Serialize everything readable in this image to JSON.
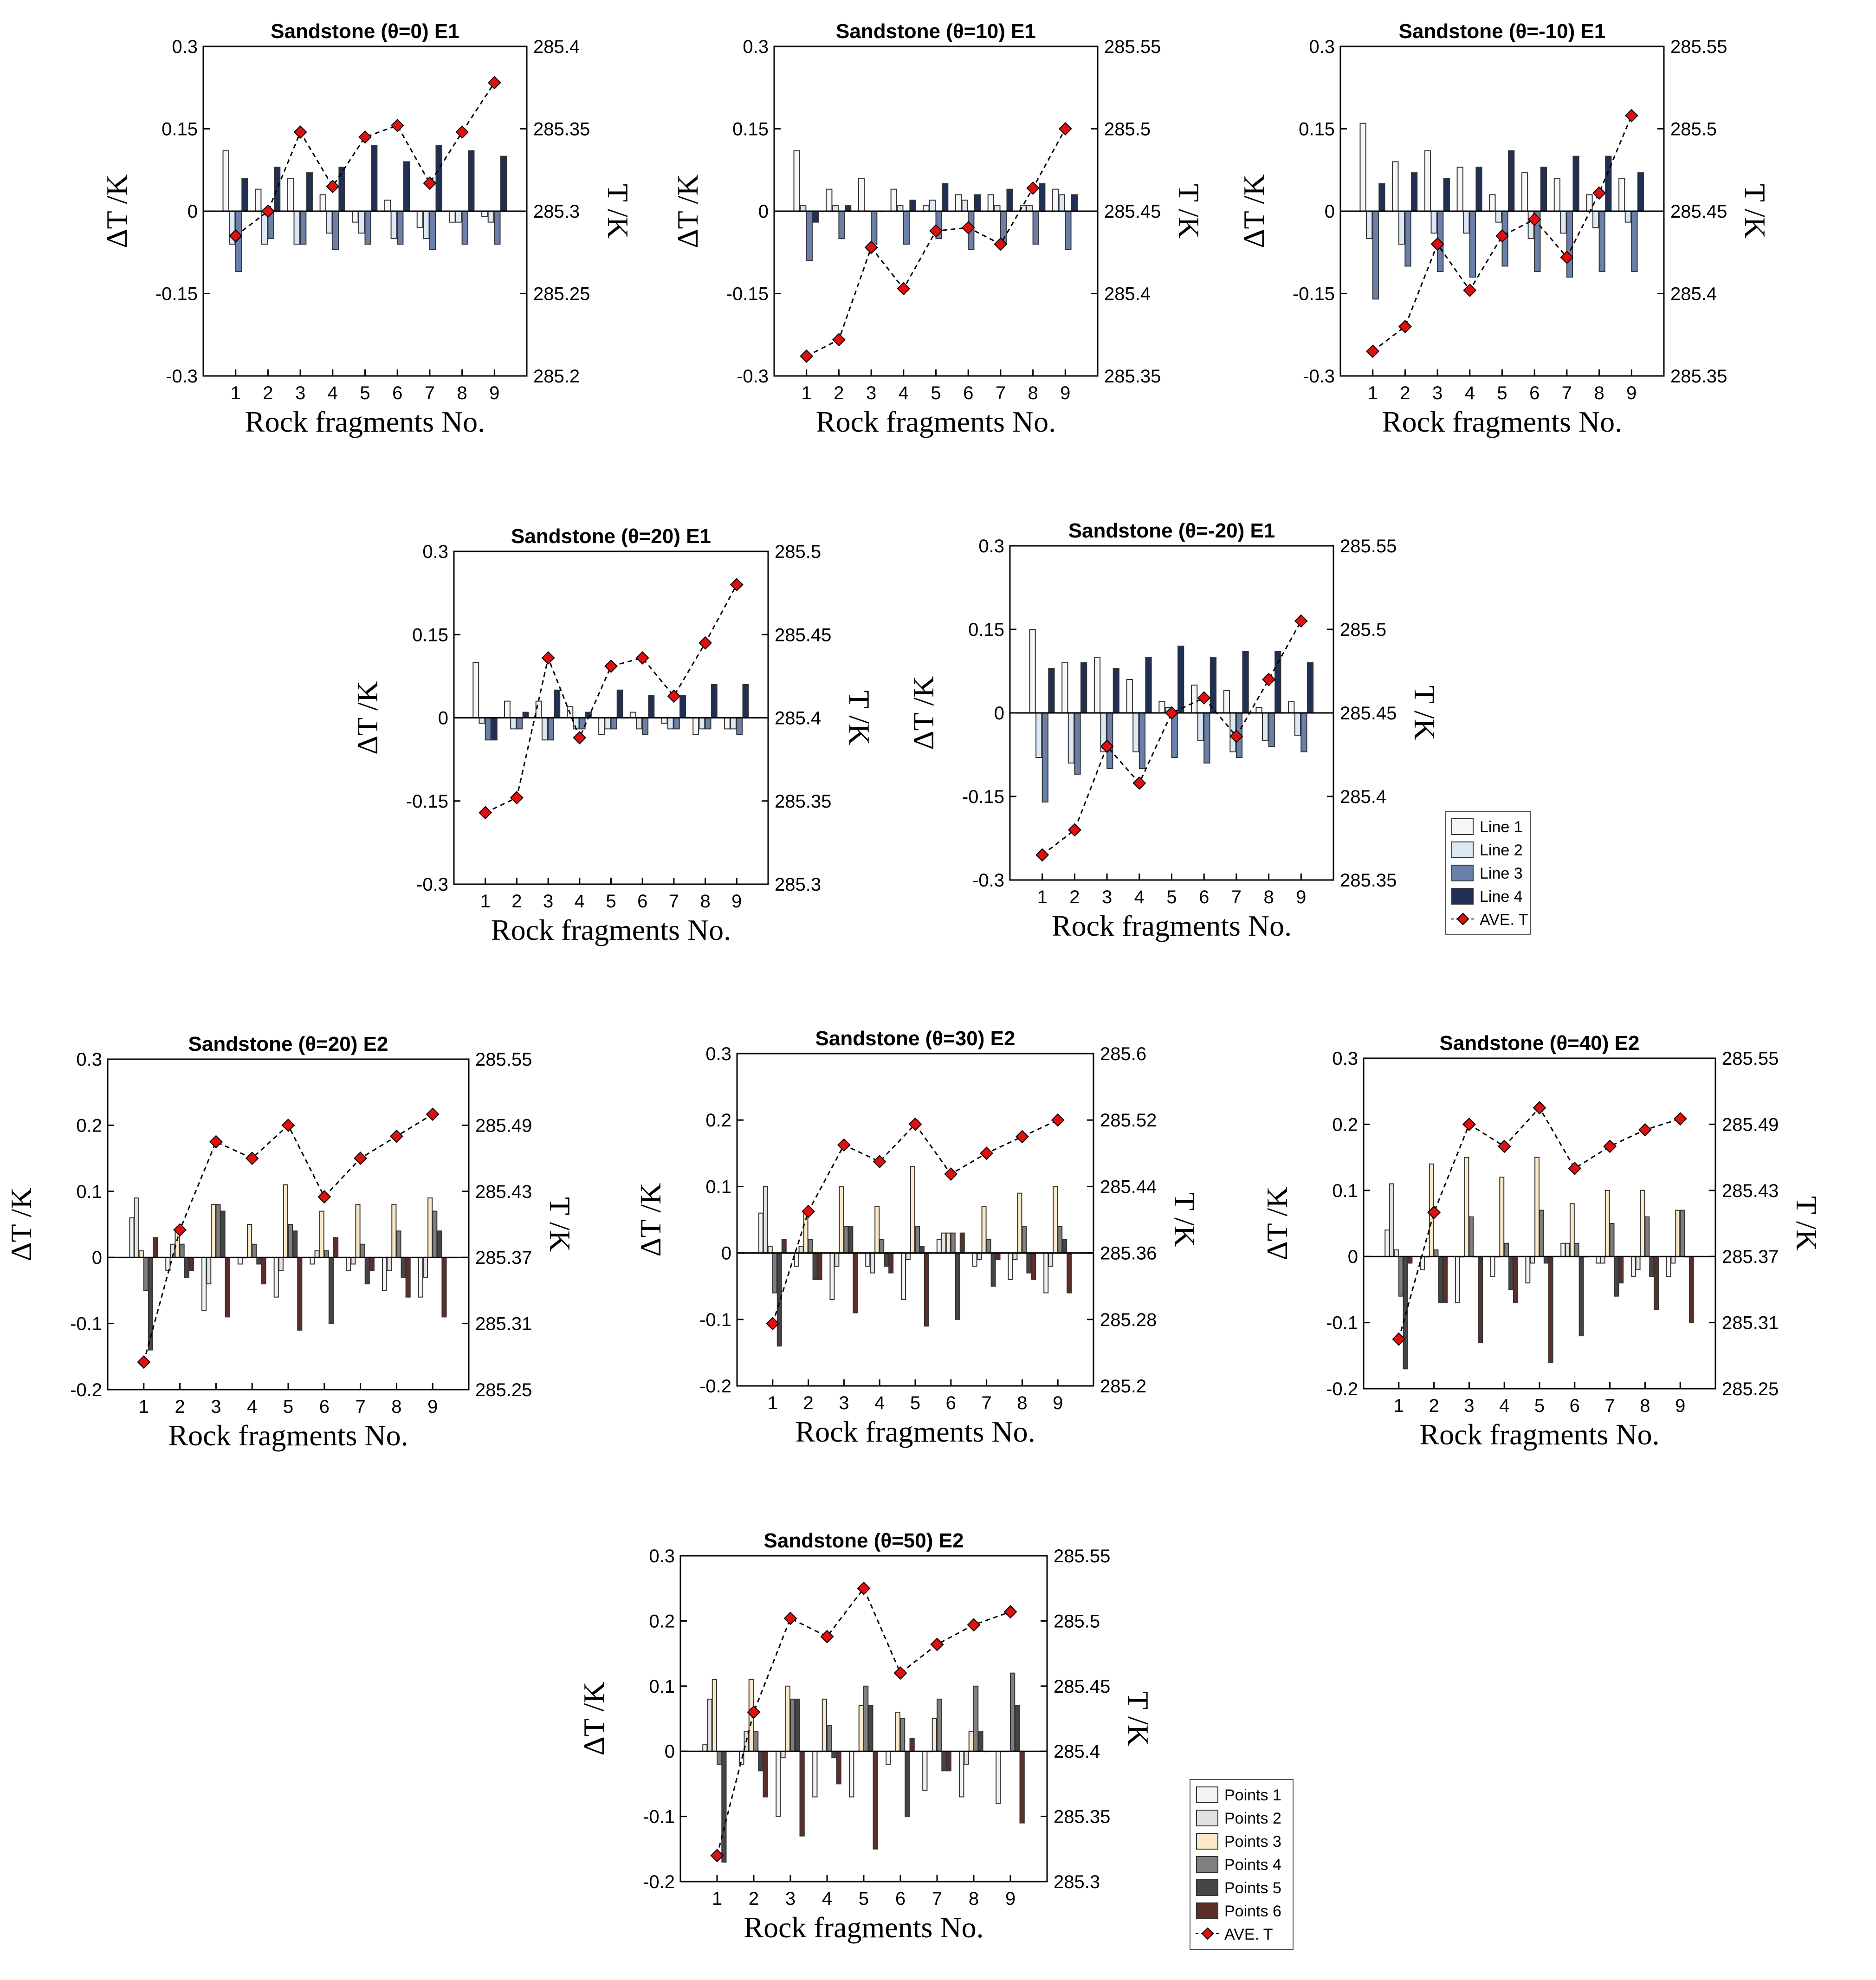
{
  "chart_data": [
    {
      "type": "bar",
      "title": "Sandstone (θ=0) E1",
      "xlabel": "Rock fragments No.",
      "ylabel": "ΔT /K",
      "y2label": "T /K",
      "categories": [
        "1",
        "2",
        "3",
        "4",
        "5",
        "6",
        "7",
        "8",
        "9"
      ],
      "ylim": [
        -0.3,
        0.3
      ],
      "yticks": [
        "0.3",
        "0.15",
        "0",
        "-0.15",
        "-0.3"
      ],
      "y2lim": [
        285.2,
        285.4
      ],
      "y2ticks": [
        "285.4",
        "285.35",
        "285.3",
        "285.25",
        "285.2"
      ],
      "series": [
        {
          "name": "Line 1",
          "values": [
            0.11,
            0.04,
            0.06,
            0.03,
            -0.02,
            0.02,
            -0.03,
            -0.02,
            -0.01
          ]
        },
        {
          "name": "Line 2",
          "values": [
            -0.06,
            -0.06,
            -0.06,
            -0.04,
            -0.04,
            -0.05,
            -0.05,
            -0.02,
            -0.02
          ]
        },
        {
          "name": "Line 3",
          "values": [
            -0.11,
            -0.05,
            -0.06,
            -0.07,
            -0.06,
            -0.06,
            -0.07,
            -0.06,
            -0.06
          ]
        },
        {
          "name": "Line 4",
          "values": [
            0.06,
            0.08,
            0.07,
            0.08,
            0.12,
            0.09,
            0.12,
            0.11,
            0.1
          ]
        }
      ],
      "line": {
        "name": "AVE. T",
        "values": [
          285.285,
          285.3,
          285.348,
          285.315,
          285.345,
          285.352,
          285.317,
          285.348,
          285.378
        ]
      }
    },
    {
      "type": "bar",
      "title": "Sandstone (θ=10) E1",
      "xlabel": "Rock fragments No.",
      "ylabel": "ΔT /K",
      "y2label": "T /K",
      "categories": [
        "1",
        "2",
        "3",
        "4",
        "5",
        "6",
        "7",
        "8",
        "9"
      ],
      "ylim": [
        -0.3,
        0.3
      ],
      "yticks": [
        "0.3",
        "0.15",
        "0",
        "-0.15",
        "-0.3"
      ],
      "y2lim": [
        285.35,
        285.55
      ],
      "y2ticks": [
        "285.55",
        "285.5",
        "285.45",
        "285.4",
        "285.35"
      ],
      "series": [
        {
          "name": "Line 1",
          "values": [
            0.11,
            0.04,
            0.06,
            0.04,
            0.01,
            0.03,
            0.03,
            0.01,
            0.04
          ]
        },
        {
          "name": "Line 2",
          "values": [
            0.01,
            0.01,
            0.0,
            0.01,
            0.02,
            0.02,
            0.01,
            0.01,
            0.03
          ]
        },
        {
          "name": "Line 3",
          "values": [
            -0.09,
            -0.05,
            -0.06,
            -0.06,
            -0.05,
            -0.07,
            -0.06,
            -0.06,
            -0.07
          ]
        },
        {
          "name": "Line 4",
          "values": [
            -0.02,
            0.01,
            0.0,
            0.02,
            0.05,
            0.03,
            0.04,
            0.05,
            0.03
          ]
        }
      ],
      "line": {
        "name": "AVE. T",
        "values": [
          285.362,
          285.372,
          285.428,
          285.403,
          285.438,
          285.44,
          285.43,
          285.464,
          285.5
        ]
      }
    },
    {
      "type": "bar",
      "title": "Sandstone (θ=-10) E1",
      "xlabel": "Rock fragments No.",
      "ylabel": "ΔT /K",
      "y2label": "T /K",
      "categories": [
        "1",
        "2",
        "3",
        "4",
        "5",
        "6",
        "7",
        "8",
        "9"
      ],
      "ylim": [
        -0.3,
        0.3
      ],
      "yticks": [
        "0.3",
        "0.15",
        "0",
        "-0.15",
        "-0.3"
      ],
      "y2lim": [
        285.35,
        285.55
      ],
      "y2ticks": [
        "285.55",
        "285.5",
        "285.45",
        "285.4",
        "285.35"
      ],
      "series": [
        {
          "name": "Line 1",
          "values": [
            0.16,
            0.09,
            0.11,
            0.08,
            0.03,
            0.07,
            0.06,
            0.03,
            0.06
          ]
        },
        {
          "name": "Line 2",
          "values": [
            -0.05,
            -0.06,
            -0.04,
            -0.04,
            -0.02,
            -0.05,
            -0.04,
            -0.03,
            -0.02
          ]
        },
        {
          "name": "Line 3",
          "values": [
            -0.16,
            -0.1,
            -0.11,
            -0.12,
            -0.1,
            -0.11,
            -0.12,
            -0.11,
            -0.11
          ]
        },
        {
          "name": "Line 4",
          "values": [
            0.05,
            0.07,
            0.06,
            0.08,
            0.11,
            0.08,
            0.1,
            0.1,
            0.07
          ]
        }
      ],
      "line": {
        "name": "AVE. T",
        "values": [
          285.365,
          285.38,
          285.43,
          285.402,
          285.435,
          285.445,
          285.422,
          285.461,
          285.508
        ]
      }
    },
    {
      "type": "bar",
      "title": "Sandstone (θ=20) E1",
      "xlabel": "Rock fragments No.",
      "ylabel": "ΔT /K",
      "y2label": "T /K",
      "categories": [
        "1",
        "2",
        "3",
        "4",
        "5",
        "6",
        "7",
        "8",
        "9"
      ],
      "ylim": [
        -0.3,
        0.3
      ],
      "yticks": [
        "0.3",
        "0.15",
        "0",
        "-0.15",
        "-0.3"
      ],
      "y2lim": [
        285.3,
        285.5
      ],
      "y2ticks": [
        "285.5",
        "285.45",
        "285.4",
        "285.35",
        "285.3"
      ],
      "series": [
        {
          "name": "Line 1",
          "values": [
            0.1,
            0.03,
            0.03,
            0.02,
            -0.03,
            0.01,
            -0.01,
            -0.03,
            -0.02
          ]
        },
        {
          "name": "Line 2",
          "values": [
            -0.01,
            -0.02,
            -0.04,
            -0.02,
            -0.02,
            -0.02,
            -0.02,
            -0.02,
            -0.02
          ]
        },
        {
          "name": "Line 3",
          "values": [
            -0.04,
            -0.02,
            -0.04,
            -0.02,
            -0.02,
            -0.03,
            -0.02,
            -0.02,
            -0.03
          ]
        },
        {
          "name": "Line 4",
          "values": [
            -0.04,
            0.01,
            0.05,
            0.01,
            0.05,
            0.04,
            0.04,
            0.06,
            0.06
          ]
        }
      ],
      "line": {
        "name": "AVE. T",
        "values": [
          285.343,
          285.352,
          285.436,
          285.388,
          285.431,
          285.436,
          285.413,
          285.445,
          285.48
        ]
      }
    },
    {
      "type": "bar",
      "title": "Sandstone (θ=-20) E1",
      "xlabel": "Rock fragments No.",
      "ylabel": "ΔT /K",
      "y2label": "T /K",
      "categories": [
        "1",
        "2",
        "3",
        "4",
        "5",
        "6",
        "7",
        "8",
        "9"
      ],
      "ylim": [
        -0.3,
        0.3
      ],
      "yticks": [
        "0.3",
        "0.15",
        "0",
        "-0.15",
        "-0.3"
      ],
      "y2lim": [
        285.35,
        285.55
      ],
      "y2ticks": [
        "285.55",
        "285.5",
        "285.45",
        "285.4",
        "285.35"
      ],
      "series": [
        {
          "name": "Line 1",
          "values": [
            0.15,
            0.09,
            0.1,
            0.06,
            0.02,
            0.05,
            0.04,
            0.01,
            0.02
          ]
        },
        {
          "name": "Line 2",
          "values": [
            -0.08,
            -0.09,
            -0.07,
            -0.07,
            0.01,
            -0.05,
            -0.07,
            -0.05,
            -0.04
          ]
        },
        {
          "name": "Line 3",
          "values": [
            -0.16,
            -0.11,
            -0.1,
            -0.1,
            -0.08,
            -0.09,
            -0.08,
            -0.06,
            -0.07
          ]
        },
        {
          "name": "Line 4",
          "values": [
            0.08,
            0.09,
            0.08,
            0.1,
            0.12,
            0.1,
            0.11,
            0.11,
            0.09
          ]
        }
      ],
      "line": {
        "name": "AVE. T",
        "values": [
          285.365,
          285.38,
          285.43,
          285.408,
          285.45,
          285.459,
          285.436,
          285.47,
          285.505
        ]
      }
    },
    {
      "type": "bar",
      "title": "Sandstone (θ=20) E2",
      "xlabel": "Rock fragments No.",
      "ylabel": "ΔT /K",
      "y2label": "T /K",
      "categories": [
        "1",
        "2",
        "3",
        "4",
        "5",
        "6",
        "7",
        "8",
        "9"
      ],
      "ylim": [
        -0.2,
        0.3
      ],
      "yticks": [
        "0.3",
        "0.2",
        "0.1",
        "0",
        "-0.1",
        "-0.2"
      ],
      "y2lim": [
        285.25,
        285.55
      ],
      "y2ticks": [
        "285.55",
        "285.49",
        "285.43",
        "285.37",
        "285.31",
        "285.25"
      ],
      "series": [
        {
          "name": "Points 1",
          "values": [
            0.06,
            -0.02,
            -0.08,
            -0.01,
            -0.06,
            -0.01,
            -0.02,
            -0.05,
            -0.06
          ]
        },
        {
          "name": "Points 2",
          "values": [
            0.09,
            0.02,
            -0.04,
            0.0,
            -0.02,
            0.01,
            -0.01,
            -0.02,
            -0.03
          ]
        },
        {
          "name": "Points 3",
          "values": [
            0.01,
            0.04,
            0.08,
            0.05,
            0.11,
            0.07,
            0.08,
            0.08,
            0.09
          ]
        },
        {
          "name": "Points 4",
          "values": [
            -0.05,
            0.02,
            0.08,
            0.02,
            0.05,
            0.01,
            0.02,
            0.04,
            0.07
          ]
        },
        {
          "name": "Points 5",
          "values": [
            -0.14,
            -0.03,
            0.07,
            -0.01,
            0.04,
            -0.1,
            -0.04,
            -0.03,
            0.04
          ]
        },
        {
          "name": "Points 6",
          "values": [
            0.03,
            -0.02,
            -0.09,
            -0.04,
            -0.11,
            0.03,
            -0.02,
            -0.06,
            -0.09
          ]
        }
      ],
      "line": {
        "name": "AVE. T",
        "values": [
          285.275,
          285.395,
          285.475,
          285.46,
          285.49,
          285.425,
          285.46,
          285.48,
          285.5
        ]
      }
    },
    {
      "type": "bar",
      "title": "Sandstone (θ=30) E2",
      "xlabel": "Rock fragments No.",
      "ylabel": "ΔT /K",
      "y2label": "T /K",
      "categories": [
        "1",
        "2",
        "3",
        "4",
        "5",
        "6",
        "7",
        "8",
        "9"
      ],
      "ylim": [
        -0.2,
        0.3
      ],
      "yticks": [
        "0.3",
        "0.2",
        "0.1",
        "0",
        "-0.1",
        "-0.2"
      ],
      "y2lim": [
        285.2,
        285.6
      ],
      "y2ticks": [
        "285.6",
        "285.52",
        "285.44",
        "285.36",
        "285.28",
        "285.2"
      ],
      "series": [
        {
          "name": "Points 1",
          "values": [
            0.06,
            -0.02,
            -0.07,
            -0.02,
            -0.07,
            0.02,
            -0.02,
            -0.04,
            -0.06
          ]
        },
        {
          "name": "Points 2",
          "values": [
            0.1,
            0.01,
            -0.02,
            -0.03,
            -0.01,
            0.03,
            -0.01,
            -0.01,
            -0.02
          ]
        },
        {
          "name": "Points 3",
          "values": [
            0.01,
            0.06,
            0.1,
            0.07,
            0.13,
            0.03,
            0.07,
            0.09,
            0.1
          ]
        },
        {
          "name": "Points 4",
          "values": [
            -0.06,
            0.02,
            0.04,
            0.02,
            0.04,
            0.03,
            0.02,
            0.04,
            0.04
          ]
        },
        {
          "name": "Points 5",
          "values": [
            -0.14,
            -0.04,
            0.04,
            -0.02,
            0.01,
            -0.1,
            -0.05,
            -0.03,
            0.02
          ]
        },
        {
          "name": "Points 6",
          "values": [
            0.02,
            -0.04,
            -0.09,
            -0.03,
            -0.11,
            0.03,
            -0.01,
            -0.04,
            -0.06
          ]
        }
      ],
      "line": {
        "name": "AVE. T",
        "values": [
          285.275,
          285.41,
          285.49,
          285.47,
          285.515,
          285.455,
          285.48,
          285.5,
          285.52
        ]
      }
    },
    {
      "type": "bar",
      "title": "Sandstone (θ=40) E2",
      "xlabel": "Rock fragments No.",
      "ylabel": "ΔT /K",
      "y2label": "T /K",
      "categories": [
        "1",
        "2",
        "3",
        "4",
        "5",
        "6",
        "7",
        "8",
        "9"
      ],
      "ylim": [
        -0.2,
        0.3
      ],
      "yticks": [
        "0.3",
        "0.2",
        "0.1",
        "0",
        "-0.1",
        "-0.2"
      ],
      "y2lim": [
        285.25,
        285.55
      ],
      "y2ticks": [
        "285.55",
        "285.49",
        "285.43",
        "285.37",
        "285.31",
        "285.25"
      ],
      "series": [
        {
          "name": "Points 1",
          "values": [
            0.04,
            -0.02,
            -0.07,
            -0.03,
            -0.04,
            0.02,
            -0.01,
            -0.03,
            -0.03
          ]
        },
        {
          "name": "Points 2",
          "values": [
            0.11,
            0.0,
            0.0,
            0.0,
            -0.01,
            0.02,
            -0.01,
            -0.02,
            -0.01
          ]
        },
        {
          "name": "Points 3",
          "values": [
            0.01,
            0.14,
            0.15,
            0.12,
            0.15,
            0.08,
            0.1,
            0.1,
            0.07
          ]
        },
        {
          "name": "Points 4",
          "values": [
            -0.06,
            0.01,
            0.06,
            0.02,
            0.07,
            0.02,
            0.05,
            0.06,
            0.07
          ]
        },
        {
          "name": "Points 5",
          "values": [
            -0.17,
            -0.07,
            0.0,
            -0.05,
            -0.01,
            -0.12,
            -0.06,
            -0.03,
            0.0
          ]
        },
        {
          "name": "Points 6",
          "values": [
            -0.01,
            -0.07,
            -0.13,
            -0.07,
            -0.16,
            0.0,
            -0.04,
            -0.08,
            -0.1
          ]
        }
      ],
      "line": {
        "name": "AVE. T",
        "values": [
          285.295,
          285.41,
          285.49,
          285.47,
          285.505,
          285.45,
          285.47,
          285.485,
          285.495
        ]
      }
    },
    {
      "type": "bar",
      "title": "Sandstone (θ=50) E2",
      "xlabel": "Rock fragments No.",
      "ylabel": "ΔT /K",
      "y2label": "T /K",
      "categories": [
        "1",
        "2",
        "3",
        "4",
        "5",
        "6",
        "7",
        "8",
        "9"
      ],
      "ylim": [
        -0.2,
        0.3
      ],
      "yticks": [
        "0.3",
        "0.2",
        "0.1",
        "0",
        "-0.1",
        "-0.2"
      ],
      "y2lim": [
        285.3,
        285.55
      ],
      "y2ticks": [
        "285.55",
        "285.5",
        "285.45",
        "285.4",
        "285.35",
        "285.3"
      ],
      "series": [
        {
          "name": "Points 1",
          "values": [
            0.01,
            -0.02,
            -0.1,
            -0.07,
            -0.07,
            -0.02,
            -0.06,
            -0.07,
            -0.08
          ]
        },
        {
          "name": "Points 2",
          "values": [
            0.08,
            0.03,
            -0.01,
            0.0,
            0.0,
            0.0,
            0.0,
            -0.02,
            0.0
          ]
        },
        {
          "name": "Points 3",
          "values": [
            0.11,
            0.11,
            0.1,
            0.08,
            0.07,
            0.06,
            0.05,
            0.03,
            0.0
          ]
        },
        {
          "name": "Points 4",
          "values": [
            -0.02,
            0.03,
            0.08,
            0.04,
            0.1,
            0.05,
            0.08,
            0.1,
            0.12
          ]
        },
        {
          "name": "Points 5",
          "values": [
            -0.17,
            -0.03,
            0.08,
            -0.01,
            0.07,
            -0.1,
            -0.03,
            0.03,
            0.07
          ]
        },
        {
          "name": "Points 6",
          "values": [
            0.0,
            -0.07,
            -0.13,
            -0.05,
            -0.15,
            0.02,
            -0.03,
            0.0,
            -0.11
          ]
        }
      ],
      "line": {
        "name": "AVE. T",
        "values": [
          285.32,
          285.43,
          285.502,
          285.488,
          285.525,
          285.46,
          285.482,
          285.497,
          285.507
        ]
      }
    }
  ],
  "legend_e1": {
    "items": [
      "Line 1",
      "Line 2",
      "Line 3",
      "Line 4",
      "AVE. T"
    ]
  },
  "legend_e2": {
    "items": [
      "Points 1",
      "Points 2",
      "Points 3",
      "Points 4",
      "Points 5",
      "Points 6",
      "AVE. T"
    ]
  },
  "colors": {
    "Line 1": "#f7f7f7",
    "Line 2": "#dbe8f5",
    "Line 3": "#6a80aa",
    "Line 4": "#1f2f55",
    "Points 1": "#f4f4f4",
    "Points 2": "#e2e2e2",
    "Points 3": "#fbe9c8",
    "Points 4": "#7f7f7f",
    "Points 5": "#454545",
    "Points 6": "#5e2e2a",
    "AVE. T": "#e01010"
  }
}
